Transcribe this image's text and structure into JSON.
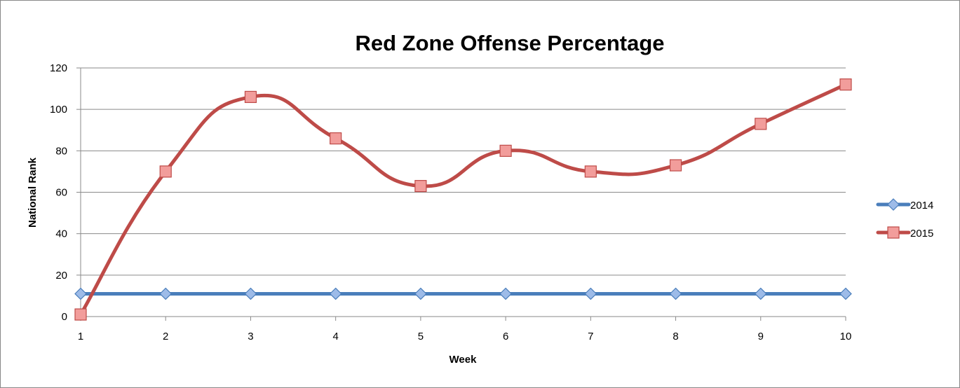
{
  "chart_data": {
    "type": "line",
    "title": "Red Zone Offense Percentage",
    "xlabel": "Week",
    "ylabel": "National Rank",
    "categories": [
      "1",
      "2",
      "3",
      "4",
      "5",
      "6",
      "7",
      "8",
      "9",
      "10"
    ],
    "ylim": [
      0,
      120
    ],
    "yticks": [
      "0",
      "20",
      "40",
      "60",
      "80",
      "100",
      "120"
    ],
    "grid": true,
    "legend": "right",
    "series": [
      {
        "name": "2014",
        "values": [
          11,
          11,
          11,
          11,
          11,
          11,
          11,
          11,
          11,
          11
        ],
        "color": "#4a7ebb",
        "marker": "diamond",
        "smooth": false
      },
      {
        "name": "2015",
        "values": [
          1,
          70,
          106,
          86,
          63,
          80,
          70,
          73,
          93,
          112
        ],
        "color": "#be4b48",
        "marker": "square",
        "smooth": true
      }
    ]
  }
}
